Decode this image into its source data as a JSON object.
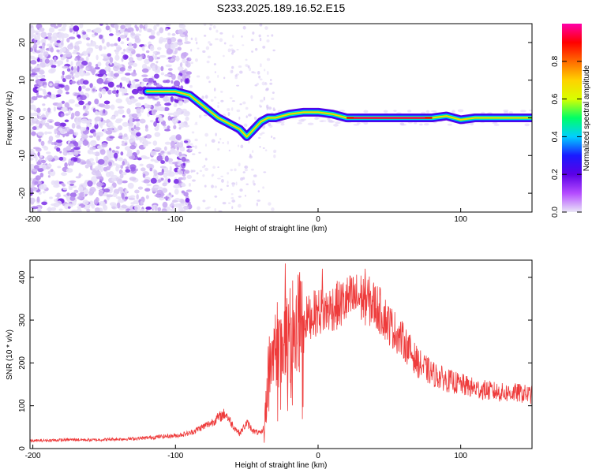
{
  "page_title": "S233.2025.189.16.52.E15",
  "colors": {
    "snr_line": "#ee3b3b",
    "colorbar_stops": [
      "#e9e6f7",
      "#b44cff",
      "#5b00e6",
      "#1a1aff",
      "#00cfff",
      "#00ff66",
      "#d8ff00",
      "#ffd200",
      "#ff6a00",
      "#ff0000",
      "#ff00aa"
    ]
  },
  "chart_data": [
    {
      "type": "heatmap",
      "title": "",
      "xlabel": "Height of straight line (km)",
      "ylabel": "Frequency (Hz)",
      "xlim": [
        -202,
        150
      ],
      "ylim": [
        -25,
        25
      ],
      "x_ticks": [
        "-200",
        "-100",
        "0",
        "100"
      ],
      "y_ticks": [
        "-20",
        "-10",
        "0",
        "10",
        "20"
      ],
      "colorbar": {
        "label": "Normalized spectral amplitude",
        "range": [
          0,
          1
        ],
        "ticks": [
          "0.0",
          "0.2",
          "0.4",
          "0.6",
          "0.8"
        ]
      },
      "ridge": {
        "x": [
          -120,
          -110,
          -100,
          -90,
          -80,
          -70,
          -60,
          -55,
          -50,
          -45,
          -40,
          -35,
          -30,
          -20,
          -10,
          0,
          10,
          20,
          40,
          60,
          80,
          90,
          100,
          110,
          120,
          130,
          150
        ],
        "y": [
          7,
          7,
          7,
          6,
          3,
          0,
          -2,
          -3,
          -5,
          -3,
          -1,
          0,
          0,
          1,
          1.5,
          1.5,
          1,
          0,
          0,
          0,
          0,
          0.5,
          -0.5,
          0,
          0,
          0,
          0
        ]
      },
      "grid": false
    },
    {
      "type": "line",
      "title": "",
      "xlabel": "Height of straight line (km)",
      "ylabel": "SNR (10 * v/v)",
      "xlim": [
        -202,
        150
      ],
      "ylim": [
        0,
        440
      ],
      "x_ticks": [
        "-200",
        "-100",
        "0",
        "100"
      ],
      "y_ticks": [
        "0",
        "100",
        "200",
        "300",
        "400"
      ],
      "series": [
        {
          "x": [
            -202,
            -190,
            -180,
            -170,
            -160,
            -150,
            -140,
            -130,
            -120,
            -110,
            -100,
            -90,
            -80,
            -75,
            -70,
            -65,
            -60,
            -55,
            -50,
            -45,
            -40,
            -38,
            -35,
            -32,
            -30,
            -27,
            -25,
            -22,
            -20,
            -15,
            -10,
            -5,
            0,
            5,
            10,
            15,
            20,
            25,
            30,
            35,
            40,
            45,
            50,
            60,
            70,
            80,
            90,
            100,
            110,
            120,
            130,
            140,
            150
          ],
          "values": [
            18,
            19,
            20,
            21,
            20,
            21,
            22,
            23,
            25,
            28,
            30,
            36,
            52,
            60,
            72,
            82,
            55,
            35,
            60,
            40,
            35,
            50,
            170,
            220,
            240,
            250,
            260,
            240,
            270,
            290,
            300,
            310,
            320,
            320,
            330,
            335,
            345,
            350,
            352,
            345,
            335,
            315,
            290,
            250,
            200,
            175,
            160,
            150,
            140,
            135,
            130,
            130,
            125
          ]
        }
      ],
      "peaks": [
        {
          "x": -23,
          "y": 432
        },
        {
          "x": -13,
          "y": 410
        },
        {
          "x": 3,
          "y": 420
        },
        {
          "x": 33,
          "y": 420
        }
      ],
      "grid": false
    }
  ]
}
